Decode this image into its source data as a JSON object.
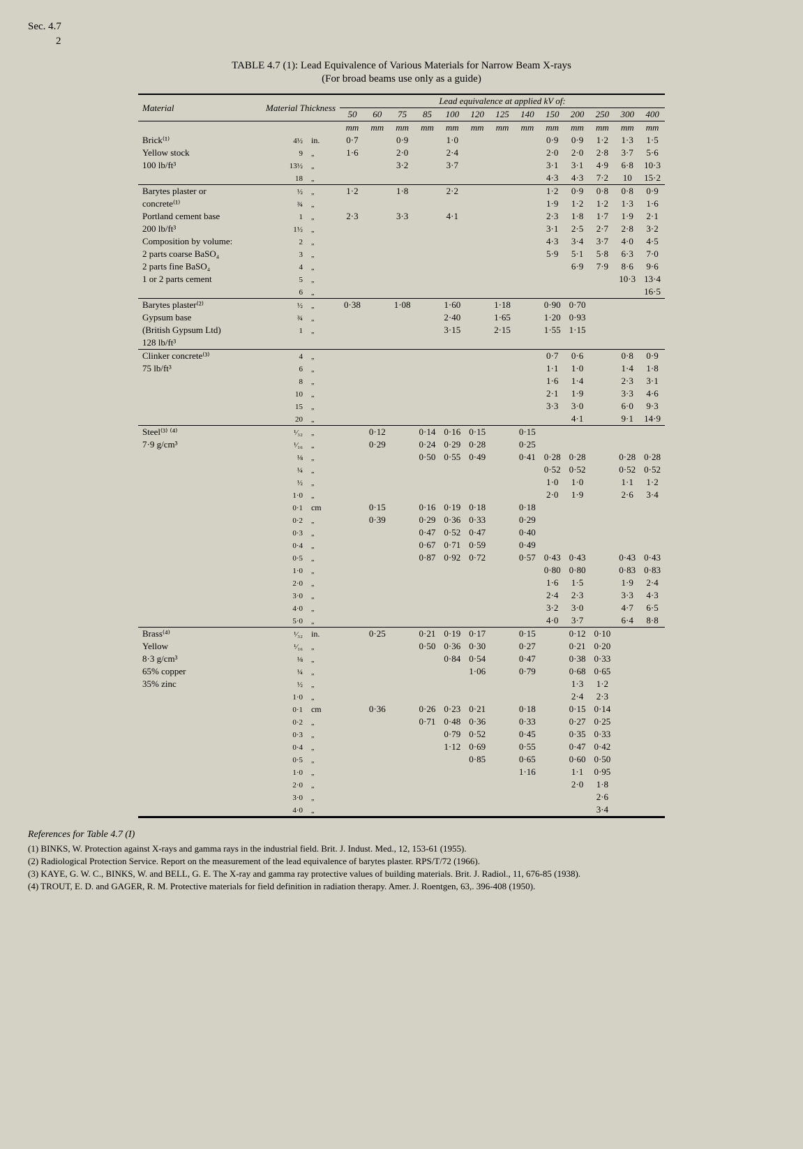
{
  "header": {
    "sec": "Sec. 4.7",
    "page": "2"
  },
  "title": "TABLE 4.7 (1): Lead Equivalence of Various Materials for Narrow Beam X-rays",
  "subtitle": "(For broad beams use only as a guide)",
  "spanHead": "Lead equivalence at applied kV of:",
  "colHeads": {
    "material": "Material",
    "thickness": "Material Thickness",
    "kv": [
      "50",
      "60",
      "75",
      "85",
      "100",
      "120",
      "125",
      "140",
      "150",
      "200",
      "250",
      "300",
      "400"
    ]
  },
  "unitRow": [
    "mm",
    "mm",
    "mm",
    "mm",
    "mm",
    "mm",
    "mm",
    "mm",
    "mm",
    "mm",
    "mm",
    "mm",
    "mm"
  ],
  "groups": [
    {
      "rows": [
        {
          "mat": "Brick⁽¹⁾",
          "th": "4½",
          "u": "in.",
          "v": [
            "0·7",
            "",
            "0·9",
            "",
            "1·0",
            "",
            "",
            "",
            "0·9",
            "0·9",
            "1·2",
            "1·3",
            "1·5"
          ]
        },
        {
          "mat": "Yellow stock",
          "th": "9",
          "u": "„",
          "v": [
            "1·6",
            "",
            "2·0",
            "",
            "2·4",
            "",
            "",
            "",
            "2·0",
            "2·0",
            "2·8",
            "3·7",
            "5·6"
          ]
        },
        {
          "mat": "100 lb/ft³",
          "th": "13½",
          "u": "„",
          "v": [
            "",
            "",
            "3·2",
            "",
            "3·7",
            "",
            "",
            "",
            "3·1",
            "3·1",
            "4·9",
            "6·8",
            "10·3"
          ]
        },
        {
          "mat": "",
          "th": "18",
          "u": "„",
          "v": [
            "",
            "",
            "",
            "",
            "",
            "",
            "",
            "",
            "4·3",
            "4·3",
            "7·2",
            "10",
            "15·2"
          ]
        }
      ]
    },
    {
      "rows": [
        {
          "mat": "Barytes plaster or",
          "th": "½",
          "u": "„",
          "v": [
            "1·2",
            "",
            "1·8",
            "",
            "2·2",
            "",
            "",
            "",
            "1·2",
            "0·9",
            "0·8",
            "0·8",
            "0·9"
          ]
        },
        {
          "mat": "concrete⁽¹⁾",
          "th": "¾",
          "u": "„",
          "v": [
            "",
            "",
            "",
            "",
            "",
            "",
            "",
            "",
            "1·9",
            "1·2",
            "1·2",
            "1·3",
            "1·6"
          ]
        },
        {
          "mat": "Portland cement base",
          "th": "1",
          "u": "„",
          "v": [
            "2·3",
            "",
            "3·3",
            "",
            "4·1",
            "",
            "",
            "",
            "2·3",
            "1·8",
            "1·7",
            "1·9",
            "2·1"
          ]
        },
        {
          "mat": "200 lb/ft³",
          "th": "1½",
          "u": "„",
          "v": [
            "",
            "",
            "",
            "",
            "",
            "",
            "",
            "",
            "3·1",
            "2·5",
            "2·7",
            "2·8",
            "3·2"
          ]
        },
        {
          "mat": "Composition by volume:",
          "th": "2",
          "u": "„",
          "v": [
            "",
            "",
            "",
            "",
            "",
            "",
            "",
            "",
            "4·3",
            "3·4",
            "3·7",
            "4·0",
            "4·5"
          ]
        },
        {
          "mat": "2 parts coarse BaSO₄",
          "th": "3",
          "u": "„",
          "v": [
            "",
            "",
            "",
            "",
            "",
            "",
            "",
            "",
            "5·9",
            "5·1",
            "5·8",
            "6·3",
            "7·0"
          ]
        },
        {
          "mat": "2 parts fine BaSO₄",
          "th": "4",
          "u": "„",
          "v": [
            "",
            "",
            "",
            "",
            "",
            "",
            "",
            "",
            "",
            "6·9",
            "7·9",
            "8·6",
            "9·6"
          ]
        },
        {
          "mat": "1 or 2 parts cement",
          "th": "5",
          "u": "„",
          "v": [
            "",
            "",
            "",
            "",
            "",
            "",
            "",
            "",
            "",
            "",
            "",
            "10·3",
            "13·4"
          ]
        },
        {
          "mat": "",
          "th": "6",
          "u": "„",
          "v": [
            "",
            "",
            "",
            "",
            "",
            "",
            "",
            "",
            "",
            "",
            "",
            "",
            "16·5"
          ]
        }
      ]
    },
    {
      "rows": [
        {
          "mat": "Barytes plaster⁽²⁾",
          "th": "½",
          "u": "„",
          "v": [
            "0·38",
            "",
            "1·08",
            "",
            "1·60",
            "",
            "1·18",
            "",
            "0·90",
            "0·70",
            "",
            "",
            ""
          ]
        },
        {
          "mat": "Gypsum base",
          "th": "¾",
          "u": "„",
          "v": [
            "",
            "",
            "",
            "",
            "2·40",
            "",
            "1·65",
            "",
            "1·20",
            "0·93",
            "",
            "",
            ""
          ]
        },
        {
          "mat": "(British Gypsum Ltd)",
          "th": "1",
          "u": "„",
          "v": [
            "",
            "",
            "",
            "",
            "3·15",
            "",
            "2·15",
            "",
            "1·55",
            "1·15",
            "",
            "",
            ""
          ]
        },
        {
          "mat": "128 lb/ft³",
          "th": "",
          "u": "",
          "v": [
            "",
            "",
            "",
            "",
            "",
            "",
            "",
            "",
            "",
            "",
            "",
            "",
            ""
          ]
        }
      ]
    },
    {
      "rows": [
        {
          "mat": "Clinker concrete⁽³⁾",
          "th": "4",
          "u": "„",
          "v": [
            "",
            "",
            "",
            "",
            "",
            "",
            "",
            "",
            "0·7",
            "0·6",
            "",
            "0·8",
            "0·9"
          ]
        },
        {
          "mat": "75 lb/ft³",
          "th": "6",
          "u": "„",
          "v": [
            "",
            "",
            "",
            "",
            "",
            "",
            "",
            "",
            "1·1",
            "1·0",
            "",
            "1·4",
            "1·8"
          ]
        },
        {
          "mat": "",
          "th": "8",
          "u": "„",
          "v": [
            "",
            "",
            "",
            "",
            "",
            "",
            "",
            "",
            "1·6",
            "1·4",
            "",
            "2·3",
            "3·1"
          ]
        },
        {
          "mat": "",
          "th": "10",
          "u": "„",
          "v": [
            "",
            "",
            "",
            "",
            "",
            "",
            "",
            "",
            "2·1",
            "1·9",
            "",
            "3·3",
            "4·6"
          ]
        },
        {
          "mat": "",
          "th": "15",
          "u": "„",
          "v": [
            "",
            "",
            "",
            "",
            "",
            "",
            "",
            "",
            "3·3",
            "3·0",
            "",
            "6·0",
            "9·3"
          ]
        },
        {
          "mat": "",
          "th": "20",
          "u": "„",
          "v": [
            "",
            "",
            "",
            "",
            "",
            "",
            "",
            "",
            "",
            "4·1",
            "",
            "9·1",
            "14·9"
          ]
        }
      ]
    },
    {
      "rows": [
        {
          "mat": "Steel⁽³⁾ ⁽⁴⁾",
          "th": "¹⁄₃₂",
          "u": "„",
          "v": [
            "",
            "0·12",
            "",
            "0·14",
            "0·16",
            "0·15",
            "",
            "0·15",
            "",
            "",
            "",
            "",
            ""
          ]
        },
        {
          "mat": "7·9 g/cm³",
          "th": "¹⁄₁₆",
          "u": "„",
          "v": [
            "",
            "0·29",
            "",
            "0·24",
            "0·29",
            "0·28",
            "",
            "0·25",
            "",
            "",
            "",
            "",
            ""
          ]
        },
        {
          "mat": "",
          "th": "⅛",
          "u": "„",
          "v": [
            "",
            "",
            "",
            "0·50",
            "0·55",
            "0·49",
            "",
            "0·41",
            "0·28",
            "0·28",
            "",
            "0·28",
            "0·28"
          ]
        },
        {
          "mat": "",
          "th": "¼",
          "u": "„",
          "v": [
            "",
            "",
            "",
            "",
            "",
            "",
            "",
            "",
            "0·52",
            "0·52",
            "",
            "0·52",
            "0·52"
          ]
        },
        {
          "mat": "",
          "th": "½",
          "u": "„",
          "v": [
            "",
            "",
            "",
            "",
            "",
            "",
            "",
            "",
            "1·0",
            "1·0",
            "",
            "1·1",
            "1·2"
          ]
        },
        {
          "mat": "",
          "th": "1·0",
          "u": "„",
          "v": [
            "",
            "",
            "",
            "",
            "",
            "",
            "",
            "",
            "2·0",
            "1·9",
            "",
            "2·6",
            "3·4"
          ]
        },
        {
          "mat": "",
          "th": "0·1",
          "u": "cm",
          "v": [
            "",
            "0·15",
            "",
            "0·16",
            "0·19",
            "0·18",
            "",
            "0·18",
            "",
            "",
            "",
            "",
            ""
          ]
        },
        {
          "mat": "",
          "th": "0·2",
          "u": "„",
          "v": [
            "",
            "0·39",
            "",
            "0·29",
            "0·36",
            "0·33",
            "",
            "0·29",
            "",
            "",
            "",
            "",
            ""
          ]
        },
        {
          "mat": "",
          "th": "0·3",
          "u": "„",
          "v": [
            "",
            "",
            "",
            "0·47",
            "0·52",
            "0·47",
            "",
            "0·40",
            "",
            "",
            "",
            "",
            ""
          ]
        },
        {
          "mat": "",
          "th": "0·4",
          "u": "„",
          "v": [
            "",
            "",
            "",
            "0·67",
            "0·71",
            "0·59",
            "",
            "0·49",
            "",
            "",
            "",
            "",
            ""
          ]
        },
        {
          "mat": "",
          "th": "0·5",
          "u": "„",
          "v": [
            "",
            "",
            "",
            "0·87",
            "0·92",
            "0·72",
            "",
            "0·57",
            "0·43",
            "0·43",
            "",
            "0·43",
            "0·43"
          ]
        },
        {
          "mat": "",
          "th": "1·0",
          "u": "„",
          "v": [
            "",
            "",
            "",
            "",
            "",
            "",
            "",
            "",
            "0·80",
            "0·80",
            "",
            "0·83",
            "0·83"
          ]
        },
        {
          "mat": "",
          "th": "2·0",
          "u": "„",
          "v": [
            "",
            "",
            "",
            "",
            "",
            "",
            "",
            "",
            "1·6",
            "1·5",
            "",
            "1·9",
            "2·4"
          ]
        },
        {
          "mat": "",
          "th": "3·0",
          "u": "„",
          "v": [
            "",
            "",
            "",
            "",
            "",
            "",
            "",
            "",
            "2·4",
            "2·3",
            "",
            "3·3",
            "4·3"
          ]
        },
        {
          "mat": "",
          "th": "4·0",
          "u": "„",
          "v": [
            "",
            "",
            "",
            "",
            "",
            "",
            "",
            "",
            "3·2",
            "3·0",
            "",
            "4·7",
            "6·5"
          ]
        },
        {
          "mat": "",
          "th": "5·0",
          "u": "„",
          "v": [
            "",
            "",
            "",
            "",
            "",
            "",
            "",
            "",
            "4·0",
            "3·7",
            "",
            "6·4",
            "8·8"
          ]
        }
      ]
    },
    {
      "rows": [
        {
          "mat": "Brass⁽⁴⁾",
          "th": "¹⁄₃₂",
          "u": "in.",
          "v": [
            "",
            "0·25",
            "",
            "0·21",
            "0·19",
            "0·17",
            "",
            "0·15",
            "",
            "0·12",
            "0·10",
            "",
            ""
          ]
        },
        {
          "mat": "Yellow",
          "th": "¹⁄₁₆",
          "u": "„",
          "v": [
            "",
            "",
            "",
            "0·50",
            "0·36",
            "0·30",
            "",
            "0·27",
            "",
            "0·21",
            "0·20",
            "",
            ""
          ]
        },
        {
          "mat": "8·3 g/cm³",
          "th": "⅛",
          "u": "„",
          "v": [
            "",
            "",
            "",
            "",
            "0·84",
            "0·54",
            "",
            "0·47",
            "",
            "0·38",
            "0·33",
            "",
            ""
          ]
        },
        {
          "mat": "65% copper",
          "th": "¼",
          "u": "„",
          "v": [
            "",
            "",
            "",
            "",
            "",
            "1·06",
            "",
            "0·79",
            "",
            "0·68",
            "0·65",
            "",
            ""
          ]
        },
        {
          "mat": "35% zinc",
          "th": "½",
          "u": "„",
          "v": [
            "",
            "",
            "",
            "",
            "",
            "",
            "",
            "",
            "",
            "1·3",
            "1·2",
            "",
            ""
          ]
        },
        {
          "mat": "",
          "th": "1·0",
          "u": "„",
          "v": [
            "",
            "",
            "",
            "",
            "",
            "",
            "",
            "",
            "",
            "2·4",
            "2·3",
            "",
            ""
          ]
        },
        {
          "mat": "",
          "th": "0·1",
          "u": "cm",
          "v": [
            "",
            "0·36",
            "",
            "0·26",
            "0·23",
            "0·21",
            "",
            "0·18",
            "",
            "0·15",
            "0·14",
            "",
            ""
          ]
        },
        {
          "mat": "",
          "th": "0·2",
          "u": "„",
          "v": [
            "",
            "",
            "",
            "0·71",
            "0·48",
            "0·36",
            "",
            "0·33",
            "",
            "0·27",
            "0·25",
            "",
            ""
          ]
        },
        {
          "mat": "",
          "th": "0·3",
          "u": "„",
          "v": [
            "",
            "",
            "",
            "",
            "0·79",
            "0·52",
            "",
            "0·45",
            "",
            "0·35",
            "0·33",
            "",
            ""
          ]
        },
        {
          "mat": "",
          "th": "0·4",
          "u": "„",
          "v": [
            "",
            "",
            "",
            "",
            "1·12",
            "0·69",
            "",
            "0·55",
            "",
            "0·47",
            "0·42",
            "",
            ""
          ]
        },
        {
          "mat": "",
          "th": "0·5",
          "u": "„",
          "v": [
            "",
            "",
            "",
            "",
            "",
            "0·85",
            "",
            "0·65",
            "",
            "0·60",
            "0·50",
            "",
            ""
          ]
        },
        {
          "mat": "",
          "th": "1·0",
          "u": "„",
          "v": [
            "",
            "",
            "",
            "",
            "",
            "",
            "",
            "1·16",
            "",
            "1·1",
            "0·95",
            "",
            ""
          ]
        },
        {
          "mat": "",
          "th": "2·0",
          "u": "„",
          "v": [
            "",
            "",
            "",
            "",
            "",
            "",
            "",
            "",
            "",
            "2·0",
            "1·8",
            "",
            ""
          ]
        },
        {
          "mat": "",
          "th": "3·0",
          "u": "„",
          "v": [
            "",
            "",
            "",
            "",
            "",
            "",
            "",
            "",
            "",
            "",
            "2·6",
            "",
            ""
          ]
        },
        {
          "mat": "",
          "th": "4·0",
          "u": "„",
          "v": [
            "",
            "",
            "",
            "",
            "",
            "",
            "",
            "",
            "",
            "",
            "3·4",
            "",
            ""
          ]
        }
      ]
    }
  ],
  "refsTitle": "References for Table 4.7 (I)",
  "refs": [
    "(1) BINKS, W. Protection against X-rays and gamma rays in the industrial field. Brit. J. Indust. Med., 12, 153-61 (1955).",
    "(2) Radiological Protection Service. Report on the measurement of the lead equivalence of barytes plaster. RPS/T/72 (1966).",
    "(3) KAYE, G. W. C., BINKS, W. and BELL, G. E. The X-ray and gamma ray protective values of building materials. Brit. J. Radiol., 11, 676-85 (1938).",
    "(4) TROUT, E. D. and GAGER, R. M. Protective materials for field definition in radiation therapy. Amer. J. Roentgen, 63,. 396-408 (1950)."
  ]
}
